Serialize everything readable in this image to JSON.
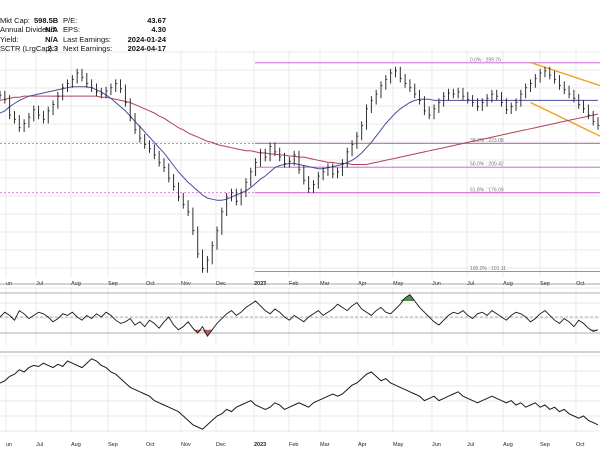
{
  "stats": {
    "left": [
      {
        "label": "Mkt Cap:",
        "value": "598.5B"
      },
      {
        "label": "Annual Dividend:",
        "value": "N/A"
      },
      {
        "label": "Yield:",
        "value": "N/A"
      },
      {
        "label": "SCTR (LrgCap):",
        "value": "2.3"
      }
    ],
    "right": [
      {
        "label": "P/E:",
        "value": "43.67"
      },
      {
        "label": "EPS:",
        "value": "4.30"
      },
      {
        "label": "Last Earnings:",
        "value": "2024-01-24"
      },
      {
        "label": "Next Earnings:",
        "value": "2024-04-17"
      }
    ]
  },
  "colors": {
    "price": "#1a1a1a",
    "ma_short": "#4b4e9e",
    "ma_long": "#b0405a",
    "fib": "#d24fd6",
    "channel": "#f0a020",
    "indicator": "#1a1a1a",
    "fill_up": "#4f8a4f",
    "fill_down": "#b55a5a",
    "grid": "#e2e2e2"
  },
  "chart_data": [
    {
      "type": "line",
      "panel": "price",
      "x_labels": [
        "un",
        "Jul",
        "Aug",
        "Sep",
        "Oct",
        "Nov",
        "Dec",
        "2023",
        "Feb",
        "Mar",
        "Apr",
        "May",
        "Jun",
        "Jul",
        "Aug",
        "Sep",
        "Oct"
      ],
      "x": [
        0,
        4,
        8,
        12,
        16,
        20,
        24,
        28,
        32,
        36,
        40,
        44,
        48,
        52,
        56,
        60,
        64,
        68,
        72,
        76,
        80,
        84,
        88,
        92,
        96,
        100,
        104,
        108,
        112,
        116,
        120,
        124,
        128,
        132,
        136,
        140,
        144,
        148,
        152,
        156,
        160,
        164,
        168,
        172,
        176,
        180,
        184,
        188,
        192,
        196,
        200,
        204,
        208,
        212,
        216,
        220,
        224,
        228,
        232,
        236,
        240,
        244,
        248,
        252,
        256,
        260,
        264,
        268,
        272,
        276,
        280,
        284,
        288,
        292,
        296,
        300,
        304,
        308,
        312,
        316,
        320,
        324,
        328,
        332,
        336,
        340,
        344,
        348,
        352,
        356,
        360,
        364,
        368,
        372,
        376,
        380,
        384,
        388,
        392,
        396,
        400,
        404,
        408,
        412,
        416,
        420,
        424,
        428,
        432,
        436,
        440,
        444,
        448,
        452,
        456,
        460,
        464,
        468,
        472,
        476,
        480,
        484,
        488,
        492,
        496
      ],
      "series": [
        {
          "style": "bars",
          "values": [
            269,
            265,
            250,
            246,
            238,
            242,
            248,
            255,
            250,
            246,
            254,
            260,
            268,
            276,
            280,
            284,
            290,
            286,
            280,
            276,
            272,
            270,
            273,
            276,
            280,
            275,
            262,
            248,
            236,
            228,
            222,
            218,
            212,
            205,
            200,
            190,
            182,
            172,
            165,
            158,
            140,
            118,
            104,
            112,
            126,
            140,
            158,
            172,
            176,
            168,
            176,
            186,
            196,
            205,
            214,
            210,
            220,
            215,
            210,
            204,
            206,
            212,
            198,
            188,
            180,
            184,
            192,
            196,
            200,
            194,
            196,
            204,
            215,
            222,
            230,
            240,
            256,
            264,
            270,
            278,
            284,
            290,
            292,
            285,
            280,
            276,
            270,
            264,
            254,
            250,
            256,
            262,
            268,
            271,
            270,
            272,
            268,
            265,
            262,
            258,
            262,
            266,
            270,
            268,
            262,
            255,
            258,
            262,
            270,
            276,
            280,
            285,
            290,
            292,
            288,
            284,
            278,
            274,
            270,
            266,
            260,
            256,
            250,
            244,
            240
          ]
        },
        {
          "style": "line",
          "values": [
            252,
            254,
            258,
            261,
            264,
            266,
            268,
            269,
            270,
            271,
            272,
            273,
            274,
            275,
            276,
            277,
            277,
            277,
            277,
            276,
            274,
            272,
            269,
            266,
            262,
            258,
            254,
            249,
            244,
            239,
            234,
            229,
            224,
            219,
            214,
            208,
            202,
            196,
            191,
            186,
            182,
            178,
            174,
            171,
            170,
            169,
            169,
            170,
            172,
            174,
            176,
            178,
            181,
            185,
            189,
            192,
            196,
            200,
            202,
            203,
            204,
            204,
            203,
            202,
            201,
            200,
            199,
            199,
            200,
            201,
            202,
            203,
            205,
            207,
            210,
            214,
            219,
            224,
            230,
            236,
            242,
            247,
            252,
            256,
            259,
            262,
            264,
            265,
            265,
            265,
            264,
            264,
            264,
            264,
            264,
            264,
            264,
            264,
            264,
            264,
            264,
            264,
            264,
            264,
            264,
            264,
            264,
            264,
            264,
            264,
            264,
            264,
            264,
            264,
            264,
            264,
            264,
            264,
            264,
            264,
            264,
            264,
            264,
            264,
            264
          ]
        },
        {
          "style": "line",
          "values": [
            264,
            265,
            266,
            267,
            267,
            268,
            268,
            268,
            268,
            268,
            268,
            268,
            268,
            268,
            268,
            268,
            268,
            268,
            268,
            268,
            268,
            267,
            267,
            266,
            265,
            264,
            263,
            262,
            260,
            258,
            256,
            254,
            252,
            249,
            247,
            244,
            241,
            238,
            236,
            233,
            231,
            229,
            227,
            225,
            224,
            222,
            221,
            220,
            219,
            218,
            217,
            216,
            216,
            215,
            214,
            214,
            213,
            213,
            212,
            212,
            211,
            211,
            210,
            210,
            209,
            208,
            207,
            206,
            205,
            205,
            204,
            204,
            204,
            203,
            203,
            203,
            203,
            204,
            205,
            206,
            207,
            208,
            209,
            210,
            211,
            212,
            213,
            214,
            215,
            216,
            217,
            218,
            219,
            220,
            221,
            222,
            223,
            224,
            225,
            226,
            227,
            228,
            229,
            230,
            231,
            232,
            233,
            234,
            235,
            236,
            237,
            238,
            239,
            240,
            241,
            242,
            243,
            244,
            245,
            246,
            247,
            248,
            249,
            250,
            251
          ]
        }
      ],
      "fib_levels": [
        {
          "label": "0.0% : 299.76",
          "value": 299.76
        },
        {
          "label": "38.2% : 223.08",
          "value": 223.08
        },
        {
          "label": "50.0% : 200.42",
          "value": 200.42
        },
        {
          "label": "61.8% : 176.09",
          "value": 176.09
        },
        {
          "label": "100.0% : 101.11",
          "value": 101.11
        }
      ],
      "ylim": [
        95,
        310
      ]
    },
    {
      "type": "line",
      "panel": "oscillator",
      "values": [
        0,
        3,
        1,
        -2,
        4,
        2,
        -1,
        1,
        3,
        2,
        0,
        -3,
        -1,
        2,
        1,
        3,
        0,
        -2,
        1,
        -1,
        2,
        0,
        3,
        1,
        -2,
        -4,
        -3,
        -1,
        -5,
        -3,
        -6,
        -2,
        -4,
        -7,
        -3,
        0,
        -5,
        -8,
        -6,
        -3,
        -7,
        -10,
        -6,
        -12,
        -8,
        -4,
        -1,
        2,
        4,
        1,
        3,
        6,
        8,
        10,
        7,
        4,
        2,
        5,
        3,
        0,
        -2,
        1,
        -1,
        -3,
        0,
        2,
        4,
        1,
        3,
        5,
        8,
        6,
        4,
        7,
        9,
        5,
        3,
        1,
        4,
        6,
        3,
        2,
        5,
        8,
        12,
        14,
        10,
        6,
        3,
        0,
        -3,
        -5,
        -2,
        1,
        3,
        2,
        4,
        1,
        -1,
        2,
        3,
        1,
        4,
        2,
        0,
        -2,
        1,
        3,
        2,
        0,
        -3,
        -1,
        2,
        4,
        1,
        -2,
        -4,
        -1,
        -3,
        -6,
        -2,
        -4,
        -7,
        -9,
        -8
      ],
      "levels": [
        15,
        0,
        -10
      ]
    },
    {
      "type": "line",
      "panel": "relative",
      "values": [
        10,
        12,
        16,
        18,
        22,
        20,
        24,
        26,
        25,
        28,
        26,
        24,
        27,
        25,
        30,
        28,
        26,
        24,
        28,
        32,
        30,
        26,
        24,
        20,
        18,
        14,
        10,
        6,
        4,
        2,
        0,
        -2,
        -6,
        -8,
        -10,
        -12,
        -14,
        -16,
        -20,
        -24,
        -28,
        -30,
        -32,
        -28,
        -24,
        -20,
        -18,
        -14,
        -16,
        -12,
        -10,
        -8,
        -6,
        -10,
        -12,
        -14,
        -12,
        -8,
        -10,
        -14,
        -12,
        -10,
        -8,
        -10,
        -12,
        -8,
        -6,
        -4,
        -2,
        0,
        -2,
        0,
        4,
        8,
        10,
        14,
        18,
        20,
        16,
        12,
        14,
        10,
        8,
        6,
        4,
        2,
        0,
        -2,
        -6,
        -4,
        -2,
        -6,
        -4,
        -2,
        0,
        2,
        -2,
        -4,
        -6,
        -8,
        -6,
        -4,
        -2,
        -4,
        -6,
        -8,
        -6,
        -10,
        -8,
        -12,
        -10,
        -8,
        -12,
        -10,
        -14,
        -12,
        -16,
        -14,
        -18,
        -20,
        -22,
        -20,
        -24,
        -26,
        -28
      ],
      "x_labels": [
        "un",
        "Jul",
        "Aug",
        "Sep",
        "Oct",
        "Nov",
        "Dec",
        "2023",
        "Feb",
        "Mar",
        "Apr",
        "May",
        "Jun",
        "Jul",
        "Aug",
        "Sep",
        "Oct"
      ]
    }
  ]
}
